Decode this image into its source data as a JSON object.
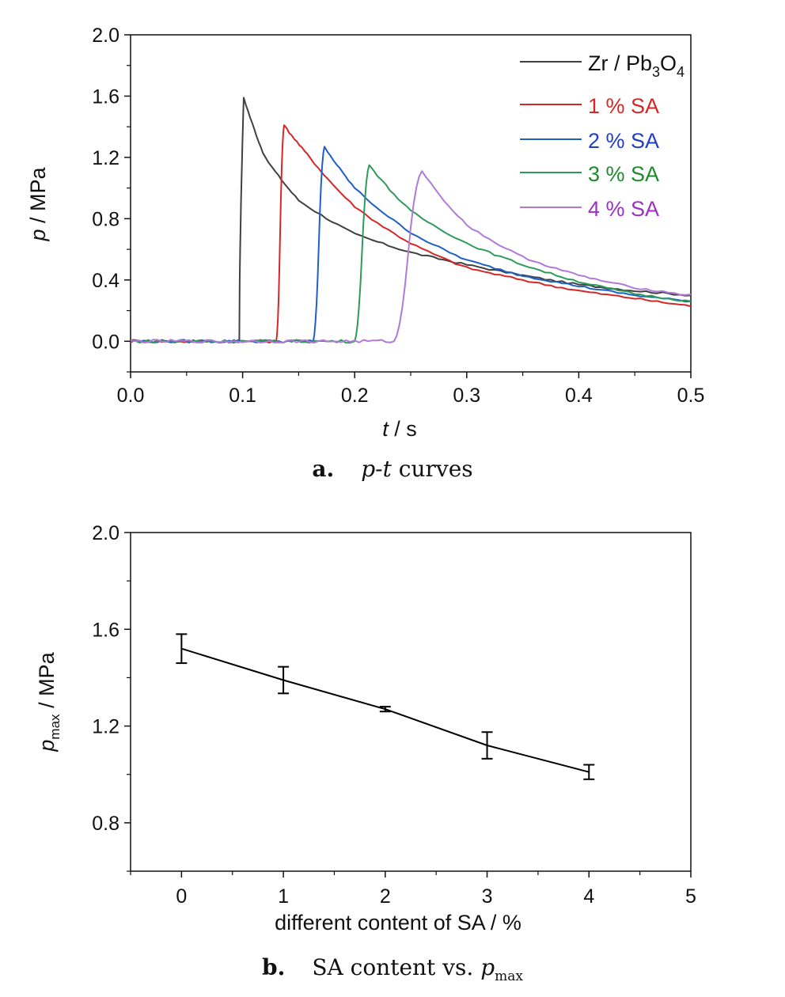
{
  "chart_data": [
    {
      "type": "line",
      "xlabel_italic": "t",
      "xlabel_rest": " / s",
      "ylabel_italic": "p",
      "ylabel_rest": " / MPa",
      "xlim": [
        0.0,
        0.5
      ],
      "ylim": [
        -0.2,
        2.0
      ],
      "x_ticks": [
        "0.0",
        "0.1",
        "0.2",
        "0.3",
        "0.4",
        "0.5"
      ],
      "y_ticks": [
        "0.0",
        "0.4",
        "0.8",
        "1.2",
        "1.6",
        "2.0"
      ],
      "grid": false,
      "legend_position": "top-right",
      "legend_first_parts": [
        "Zr / Pb",
        "3",
        "O",
        "4"
      ],
      "caption_letter": "a.",
      "caption_text_italic": "p-t",
      "caption_text_rest": " curves",
      "series": [
        {
          "name": "Zr / Pb3O4",
          "color": "#404040",
          "onset": 0.097,
          "peak_t": 0.101,
          "peak_p": 1.59,
          "x": [
            0.0,
            0.097,
            0.101,
            0.12,
            0.15,
            0.2,
            0.25,
            0.3,
            0.35,
            0.4,
            0.45,
            0.5
          ],
          "y": [
            0.0,
            0.0,
            1.59,
            1.2,
            0.92,
            0.7,
            0.58,
            0.5,
            0.43,
            0.37,
            0.33,
            0.3
          ]
        },
        {
          "name": "1 % SA",
          "color": "#d62728",
          "onset": 0.13,
          "peak_t": 0.137,
          "peak_p": 1.41,
          "x": [
            0.0,
            0.13,
            0.137,
            0.16,
            0.2,
            0.25,
            0.3,
            0.35,
            0.4,
            0.45,
            0.5
          ],
          "y": [
            0.0,
            0.0,
            1.41,
            1.2,
            0.88,
            0.64,
            0.48,
            0.4,
            0.33,
            0.28,
            0.23
          ]
        },
        {
          "name": "2 % SA",
          "color": "#1f5fc8",
          "onset": 0.163,
          "peak_t": 0.173,
          "peak_p": 1.27,
          "x": [
            0.0,
            0.163,
            0.173,
            0.2,
            0.25,
            0.3,
            0.35,
            0.4,
            0.45,
            0.5
          ],
          "y": [
            0.0,
            0.0,
            1.27,
            1.0,
            0.71,
            0.53,
            0.43,
            0.36,
            0.3,
            0.26
          ]
        },
        {
          "name": "3 % SA",
          "color": "#2e9a5b",
          "onset": 0.2,
          "peak_t": 0.213,
          "peak_p": 1.15,
          "x": [
            0.0,
            0.2,
            0.213,
            0.25,
            0.3,
            0.35,
            0.4,
            0.45,
            0.5
          ],
          "y": [
            0.0,
            0.0,
            1.15,
            0.85,
            0.64,
            0.5,
            0.39,
            0.31,
            0.26
          ]
        },
        {
          "name": "4 % SA",
          "color": "#b07ad6",
          "onset": 0.235,
          "peak_t": 0.26,
          "peak_p": 1.11,
          "x": [
            0.0,
            0.235,
            0.26,
            0.3,
            0.35,
            0.4,
            0.45,
            0.5
          ],
          "y": [
            0.0,
            0.0,
            1.11,
            0.76,
            0.55,
            0.43,
            0.35,
            0.3
          ]
        }
      ],
      "legend_colors": [
        "#111111",
        "#d62728",
        "#1f3fc8",
        "#1f8a2e",
        "#9b30c8"
      ]
    },
    {
      "type": "line",
      "xlabel": "different content of SA / %",
      "ylabel_italic": "p",
      "ylabel_sub": "max",
      "ylabel_rest": " / MPa",
      "xlim": [
        -0.5,
        5
      ],
      "ylim": [
        0.6,
        2.0
      ],
      "x_ticks": [
        "0",
        "1",
        "2",
        "3",
        "4",
        "5"
      ],
      "y_ticks": [
        "0.8",
        "1.2",
        "1.6",
        "2.0"
      ],
      "grid": false,
      "caption_letter": "b.",
      "caption_text": "SA content vs. ",
      "caption_italic": "p",
      "caption_sub": "max",
      "series": [
        {
          "color": "#000000",
          "x": [
            0,
            1,
            2,
            3,
            4
          ],
          "y": [
            1.52,
            1.39,
            1.27,
            1.12,
            1.01
          ],
          "err": [
            0.06,
            0.055,
            0.01,
            0.055,
            0.03
          ]
        }
      ]
    }
  ]
}
